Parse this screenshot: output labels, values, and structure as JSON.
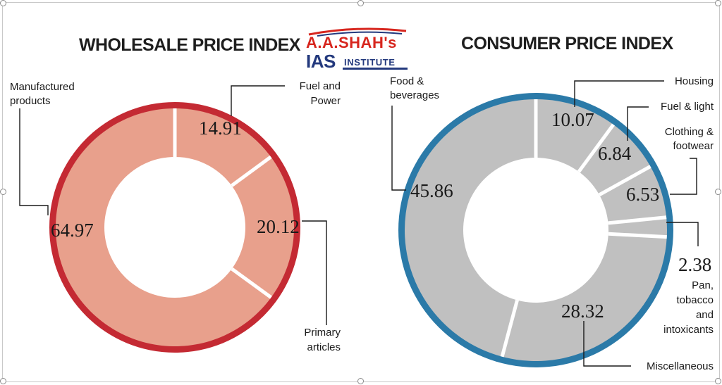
{
  "logo": {
    "top": "A.A.SHAH's",
    "ias": "IAS",
    "institute": "INSTITUTE"
  },
  "chart_data": [
    {
      "type": "pie",
      "title": "WHOLESALE PRICE INDEX",
      "categories": [
        "Fuel and Power",
        "Primary articles",
        "Manufactured products"
      ],
      "values": [
        14.91,
        20.12,
        64.97
      ],
      "value_labels": [
        "14.91",
        "20.12",
        "64.97"
      ],
      "colors": {
        "fill": "#e8a08c",
        "ring": "#c42a33",
        "divider": "#ffffff"
      }
    },
    {
      "type": "pie",
      "title": "CONSUMER PRICE INDEX",
      "categories": [
        "Housing",
        "Fuel & light",
        "Clothing & footwear",
        "Pan, tobacco and intoxicants",
        "Miscellaneous",
        "Food & beverages"
      ],
      "values": [
        10.07,
        6.84,
        6.53,
        2.38,
        28.32,
        45.86
      ],
      "value_labels": [
        "10.07",
        "6.84",
        "6.53",
        "2.38",
        "28.32",
        "45.86"
      ],
      "colors": {
        "fill": "#c0c0c0",
        "ring": "#2b7aa8",
        "divider": "#ffffff"
      }
    }
  ],
  "labels": {
    "wpi": {
      "fuel_power": [
        "Fuel and",
        "Power"
      ],
      "primary": [
        "Primary",
        "articles"
      ],
      "manufactured": [
        "Manufactured",
        "products"
      ]
    },
    "cpi": {
      "housing": [
        "Housing"
      ],
      "fuel_light": [
        "Fuel & light"
      ],
      "clothing": [
        "Clothing &",
        "footwear"
      ],
      "pan": [
        "Pan,",
        "tobacco",
        "and",
        "intoxicants"
      ],
      "misc": [
        "Miscellaneous"
      ],
      "food": [
        "Food &",
        "beverages"
      ]
    }
  }
}
